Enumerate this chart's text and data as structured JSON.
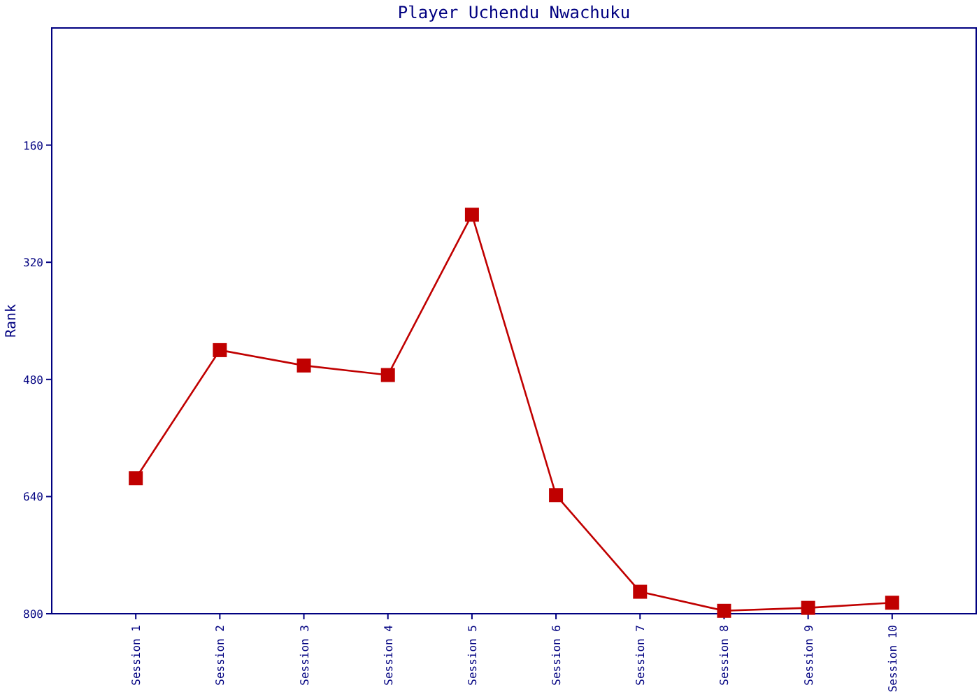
{
  "chart_data": {
    "type": "line",
    "title": "Player Uchendu Nwachuku",
    "ylabel": "Rank",
    "categories": [
      "Session 1",
      "Session 2",
      "Session 3",
      "Session 4",
      "Session 5",
      "Session 6",
      "Session 7",
      "Session 8",
      "Session 9",
      "Session 10"
    ],
    "series": [
      {
        "color": "#c00000",
        "values": [
          615,
          440,
          461,
          474,
          255,
          638,
          770,
          796,
          792,
          785
        ]
      }
    ],
    "ylim": [
      800,
      0
    ],
    "yticks": [
      160,
      320,
      480,
      640,
      800
    ],
    "marker": "square",
    "line_style": "solid",
    "grid": false
  }
}
